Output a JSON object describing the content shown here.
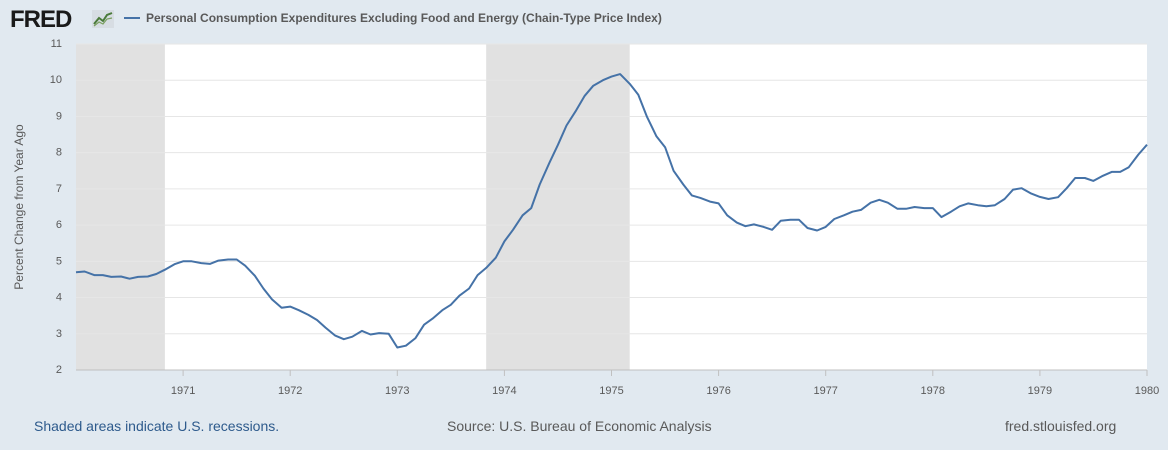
{
  "header": {
    "logo_text": "FRED",
    "logo_icon": "line-chart-icon"
  },
  "legend": {
    "label": "Personal Consumption Expenditures Excluding Food and Energy (Chain-Type Price Index)",
    "color": "#4572a7"
  },
  "footer": {
    "recession_note": "Shaded areas indicate U.S. recessions.",
    "source": "Source: U.S. Bureau of Economic Analysis",
    "site": "fred.stlouisfed.org"
  },
  "chart_data": {
    "type": "line",
    "ylabel": "Percent Change from Year Ago",
    "xlabel": "",
    "ylim": [
      2,
      11
    ],
    "yticks": [
      "2",
      "3",
      "4",
      "5",
      "6",
      "7",
      "8",
      "9",
      "10",
      "11"
    ],
    "xlim": [
      1970.0,
      1980.0
    ],
    "xticks": [
      "1971",
      "1972",
      "1973",
      "1974",
      "1975",
      "1976",
      "1977",
      "1978",
      "1979",
      "1980"
    ],
    "grid": true,
    "recessions": [
      [
        1970.0,
        1970.83
      ],
      [
        1973.83,
        1975.17
      ]
    ],
    "series": [
      {
        "name": "Personal Consumption Expenditures Excluding Food and Energy (Chain-Type Price Index)",
        "color": "#4572a7",
        "x": [
          1970.0,
          1970.08,
          1970.17,
          1970.25,
          1970.33,
          1970.42,
          1970.5,
          1970.58,
          1970.67,
          1970.75,
          1970.83,
          1970.92,
          1971.0,
          1971.08,
          1971.17,
          1971.25,
          1971.33,
          1971.42,
          1971.5,
          1971.58,
          1971.67,
          1971.75,
          1971.83,
          1971.92,
          1972.0,
          1972.08,
          1972.17,
          1972.25,
          1972.33,
          1972.42,
          1972.5,
          1972.58,
          1972.67,
          1972.75,
          1972.83,
          1972.92,
          1973.0,
          1973.08,
          1973.17,
          1973.25,
          1973.33,
          1973.42,
          1973.5,
          1973.58,
          1973.67,
          1973.75,
          1973.83,
          1973.92,
          1974.0,
          1974.08,
          1974.17,
          1974.25,
          1974.33,
          1974.42,
          1974.5,
          1974.58,
          1974.67,
          1974.75,
          1974.83,
          1974.92,
          1975.0,
          1975.08,
          1975.17,
          1975.25,
          1975.33,
          1975.42,
          1975.5,
          1975.58,
          1975.67,
          1975.75,
          1975.83,
          1975.92,
          1976.0,
          1976.08,
          1976.17,
          1976.25,
          1976.33,
          1976.42,
          1976.5,
          1976.58,
          1976.67,
          1976.75,
          1976.83,
          1976.92,
          1977.0,
          1977.08,
          1977.17,
          1977.25,
          1977.33,
          1977.42,
          1977.5,
          1977.58,
          1977.67,
          1977.75,
          1977.83,
          1977.92,
          1978.0,
          1978.08,
          1978.17,
          1978.25,
          1978.33,
          1978.42,
          1978.5,
          1978.58,
          1978.67,
          1978.75,
          1978.83,
          1978.92,
          1979.0,
          1979.08,
          1979.17,
          1979.25,
          1979.33,
          1979.42,
          1979.5,
          1979.58,
          1979.67,
          1979.75,
          1979.83,
          1979.92,
          1980.0
        ],
        "values": [
          4.7,
          4.72,
          4.62,
          4.62,
          4.57,
          4.58,
          4.52,
          4.57,
          4.58,
          4.65,
          4.77,
          4.92,
          5.0,
          5.0,
          4.95,
          4.93,
          5.02,
          5.05,
          5.05,
          4.88,
          4.6,
          4.25,
          3.95,
          3.72,
          3.75,
          3.65,
          3.52,
          3.38,
          3.17,
          2.95,
          2.85,
          2.92,
          3.08,
          2.98,
          3.02,
          3.0,
          2.62,
          2.67,
          2.88,
          3.25,
          3.42,
          3.65,
          3.8,
          4.05,
          4.25,
          4.62,
          4.82,
          5.1,
          5.55,
          5.87,
          6.27,
          6.47,
          7.12,
          7.72,
          8.22,
          8.75,
          9.17,
          9.57,
          9.85,
          10.0,
          10.1,
          10.17,
          9.9,
          9.6,
          9.0,
          8.45,
          8.15,
          7.5,
          7.12,
          6.82,
          6.75,
          6.65,
          6.6,
          6.27,
          6.07,
          5.97,
          6.02,
          5.95,
          5.87,
          6.12,
          6.15,
          6.15,
          5.92,
          5.85,
          5.95,
          6.17,
          6.27,
          6.37,
          6.42,
          6.62,
          6.7,
          6.62,
          6.45,
          6.45,
          6.5,
          6.47,
          6.47,
          6.22,
          6.37,
          6.52,
          6.6,
          6.55,
          6.52,
          6.55,
          6.72,
          6.98,
          7.02,
          6.87,
          6.78,
          6.72,
          6.77,
          7.02,
          7.3,
          7.3,
          7.22,
          7.35,
          7.47,
          7.47,
          7.6,
          7.95,
          8.22
        ]
      }
    ]
  }
}
